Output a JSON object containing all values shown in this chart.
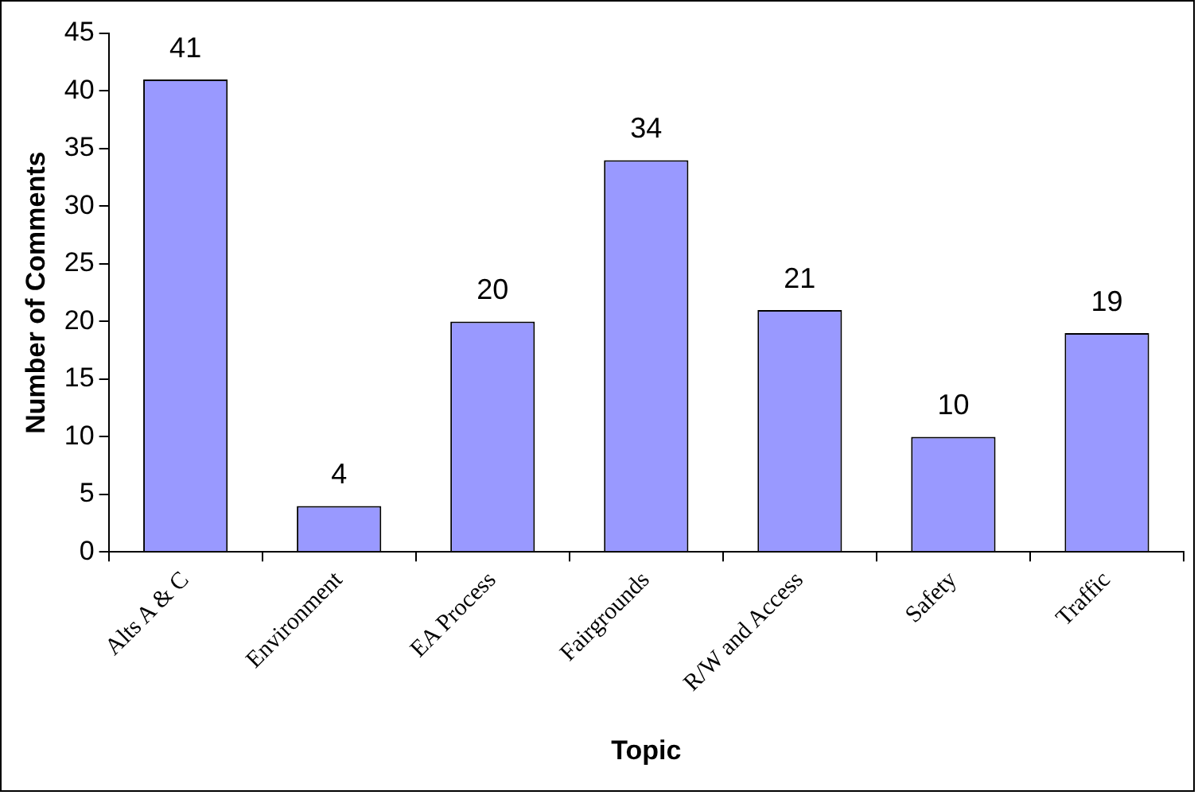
{
  "chart_data": {
    "type": "bar",
    "xlabel": "Topic",
    "ylabel": "Number of Comments",
    "categories": [
      "Alts A & C",
      "Environment",
      "EA Process",
      "Fairgrounds",
      "R/W and Access",
      "Safety",
      "Traffic"
    ],
    "values": [
      41,
      4,
      20,
      34,
      21,
      10,
      19
    ],
    "color": "#9999ff",
    "ylim": [
      0,
      45
    ],
    "yticks": [
      0,
      5,
      10,
      15,
      20,
      25,
      30,
      35,
      40,
      45
    ],
    "grid": false,
    "legend": false,
    "data_labels": true
  }
}
